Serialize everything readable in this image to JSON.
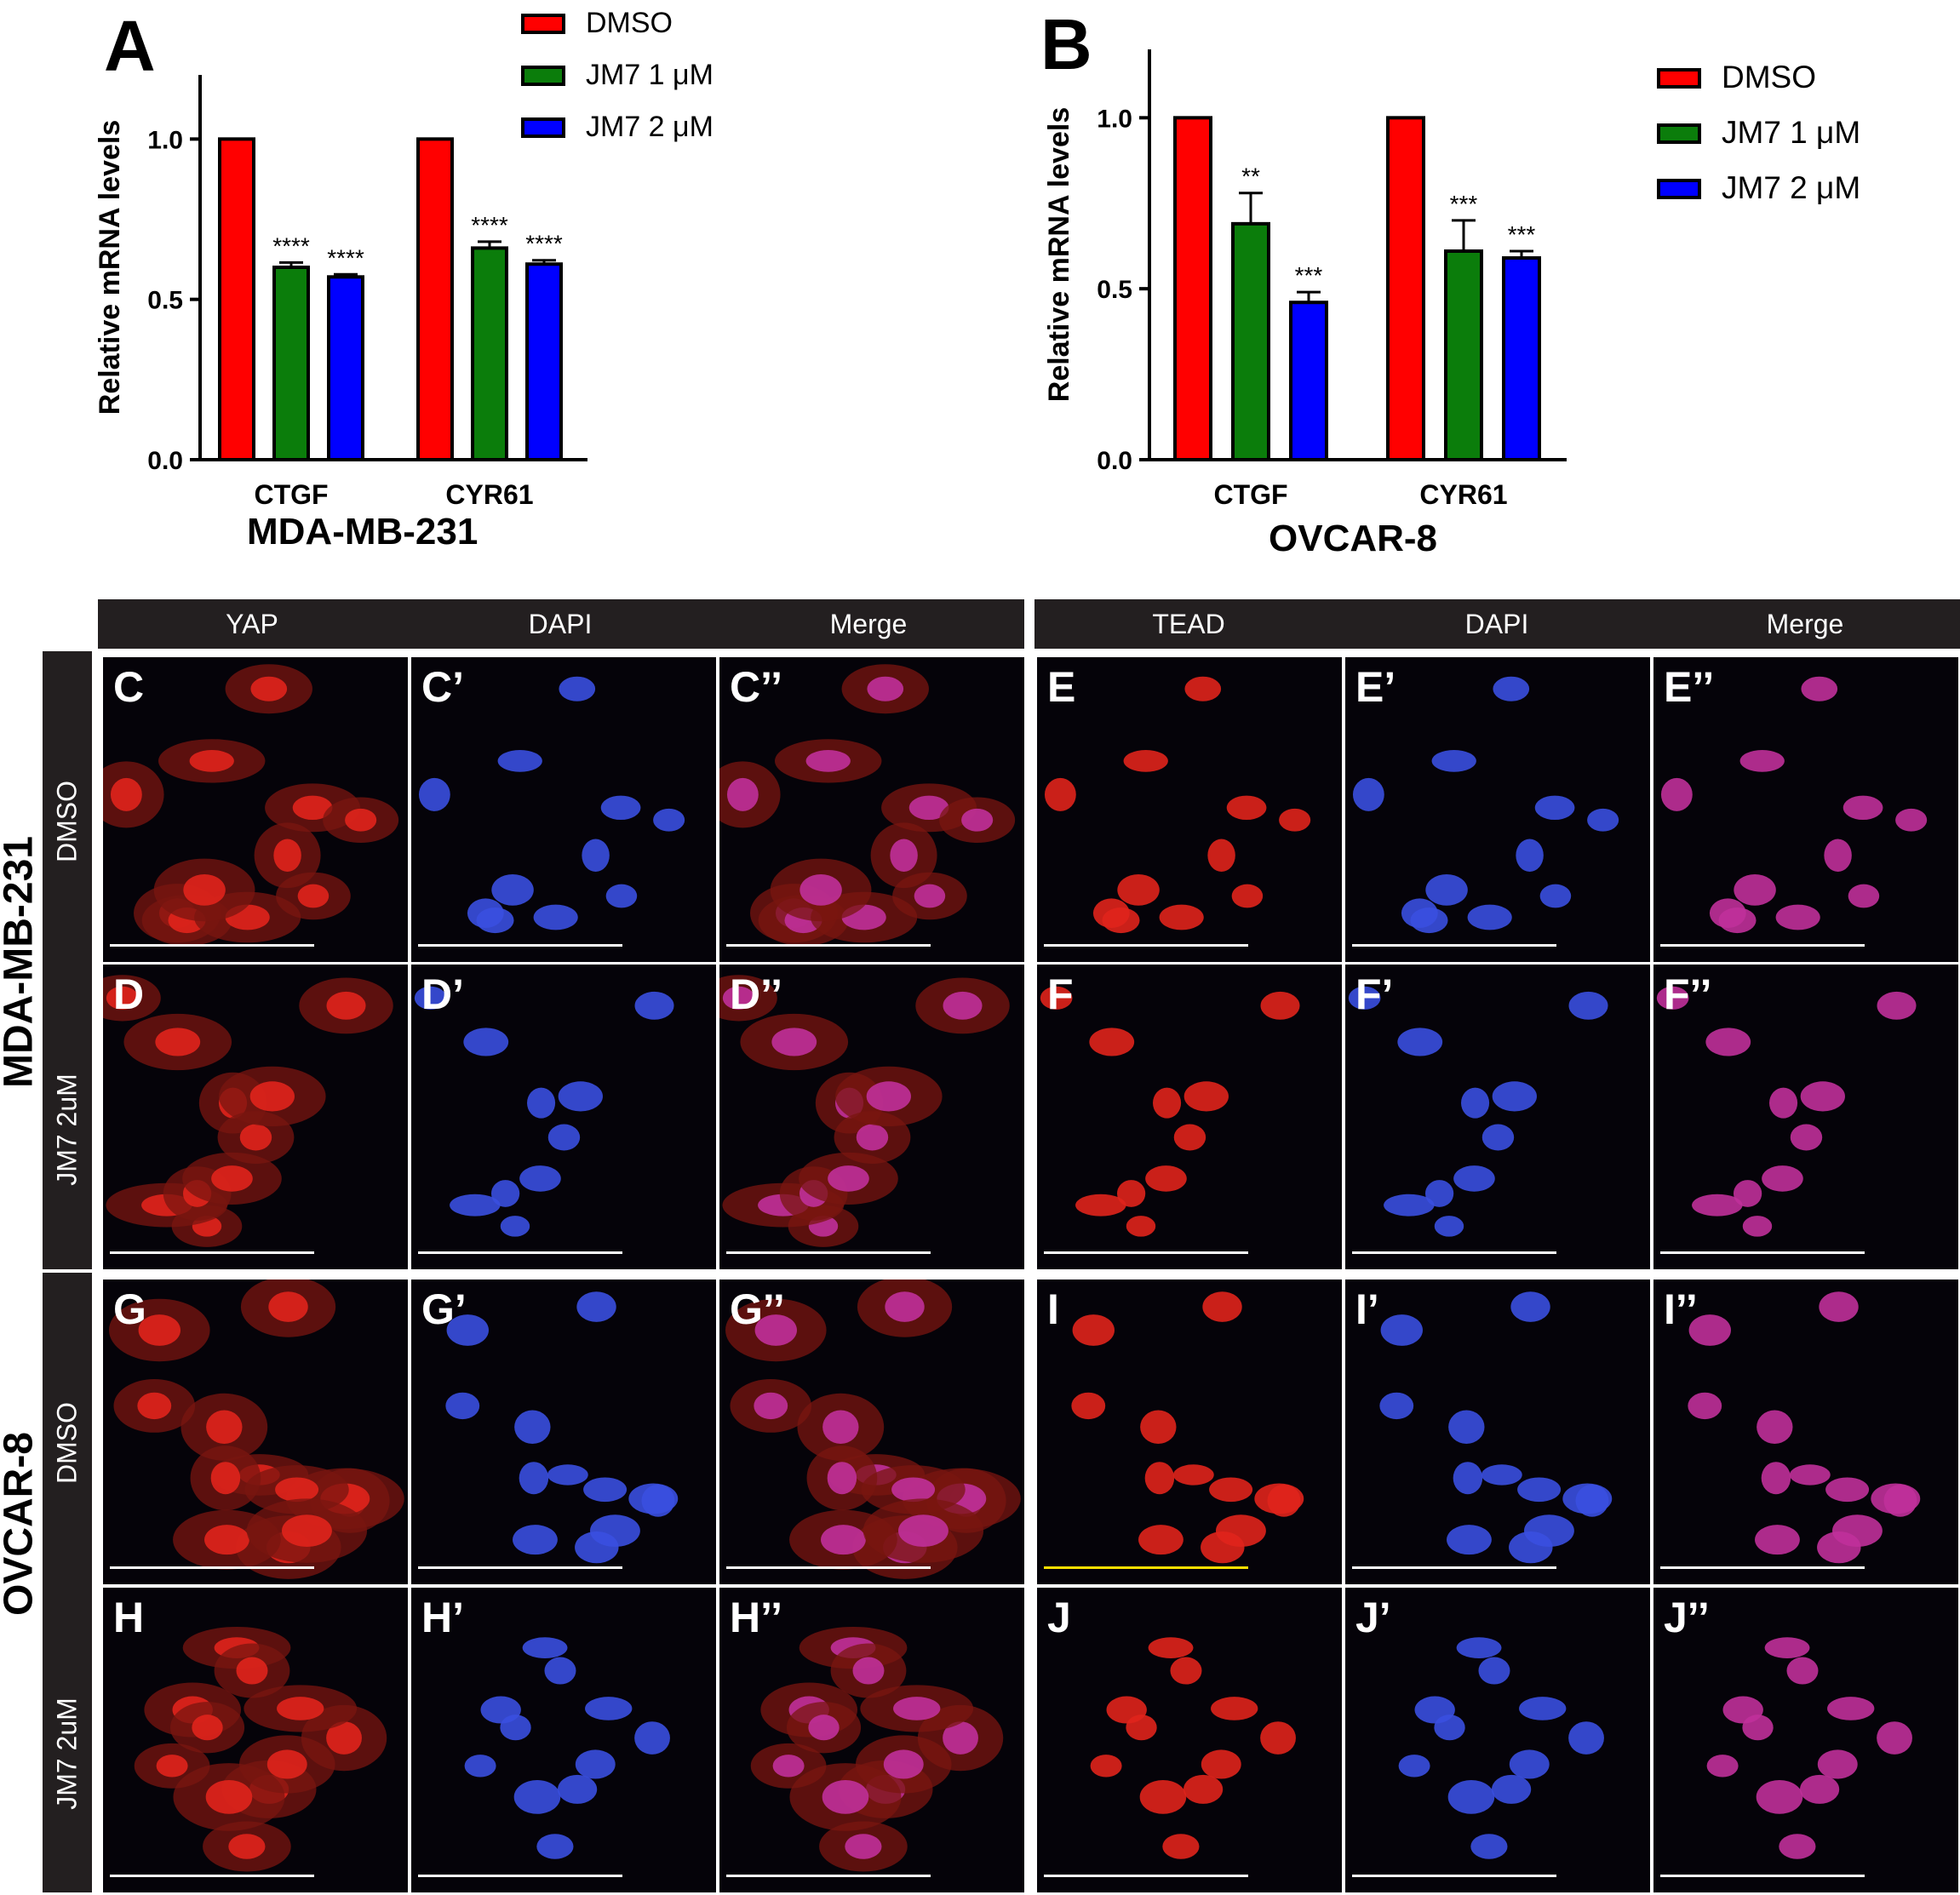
{
  "panels": {
    "A": {
      "letter": "A",
      "cell_line": "MDA-MB-231",
      "legend": [
        "DMSO",
        "JM7 1 μM",
        "JM7 2 μM"
      ]
    },
    "B": {
      "letter": "B",
      "cell_line": "OVCAR-8",
      "legend": [
        "DMSO",
        "JM7 1 μM",
        "JM7 2 μM"
      ]
    }
  },
  "chart_data": [
    {
      "type": "bar",
      "ylabel": "Relative mRNA levels",
      "xlabel": "MDA-MB-231",
      "categories": [
        "CTGF",
        "CYR61"
      ],
      "ylim": [
        0,
        1.2
      ],
      "yticks": [
        "0.0",
        "0.5",
        "1.0"
      ],
      "series": [
        {
          "name": "DMSO",
          "color": "#ff0000",
          "values": [
            1.0,
            1.0
          ],
          "errors": [
            0,
            0
          ],
          "stars": [
            "",
            ""
          ]
        },
        {
          "name": "JM7 1 μM",
          "color": "#0b7d0b",
          "values": [
            0.6,
            0.66
          ],
          "errors": [
            0.015,
            0.02
          ],
          "stars": [
            "****",
            "****"
          ]
        },
        {
          "name": "JM7 2 μM",
          "color": "#0000ff",
          "values": [
            0.57,
            0.61
          ],
          "errors": [
            0.008,
            0.012
          ],
          "stars": [
            "****",
            "****"
          ]
        }
      ]
    },
    {
      "type": "bar",
      "ylabel": "Relative mRNA levels",
      "xlabel": "OVCAR-8",
      "categories": [
        "CTGF",
        "CYR61"
      ],
      "ylim": [
        0,
        1.2
      ],
      "yticks": [
        "0.0",
        "0.5",
        "1.0"
      ],
      "series": [
        {
          "name": "DMSO",
          "color": "#ff0000",
          "values": [
            1.0,
            1.0
          ],
          "errors": [
            0,
            0
          ],
          "stars": [
            "",
            ""
          ]
        },
        {
          "name": "JM7 1 μM",
          "color": "#0b7d0b",
          "values": [
            0.69,
            0.61
          ],
          "errors": [
            0.09,
            0.09
          ],
          "stars": [
            "**",
            "***"
          ]
        },
        {
          "name": "JM7 2 μM",
          "color": "#0000ff",
          "values": [
            0.46,
            0.59
          ],
          "errors": [
            0.03,
            0.02
          ],
          "stars": [
            "***",
            "***"
          ]
        }
      ]
    }
  ],
  "grid": {
    "headers_left": [
      "YAP",
      "DAPI",
      "Merge"
    ],
    "headers_right": [
      "TEAD",
      "DAPI",
      "Merge"
    ],
    "cell_types": [
      "MDA-MB-231",
      "OVCAR-8"
    ],
    "rows": [
      {
        "treatment": "DMSO",
        "labels": [
          "C",
          "C’",
          "C’’",
          "E",
          "E’",
          "E’’"
        ]
      },
      {
        "treatment": "JM7 2uM",
        "labels": [
          "D",
          "D’",
          "D’’",
          "F",
          "F’",
          "F’’"
        ]
      },
      {
        "treatment": "DMSO",
        "labels": [
          "G",
          "G’",
          "G’’",
          "I",
          "I’",
          "I’’"
        ]
      },
      {
        "treatment": "JM7 2uM",
        "labels": [
          "H",
          "H’",
          "H’’",
          "J",
          "J’",
          "J’’"
        ]
      }
    ],
    "channel_colors": {
      "red": "#e0241c",
      "blue": "#3a4fe0",
      "merge": "#c0309a"
    }
  }
}
